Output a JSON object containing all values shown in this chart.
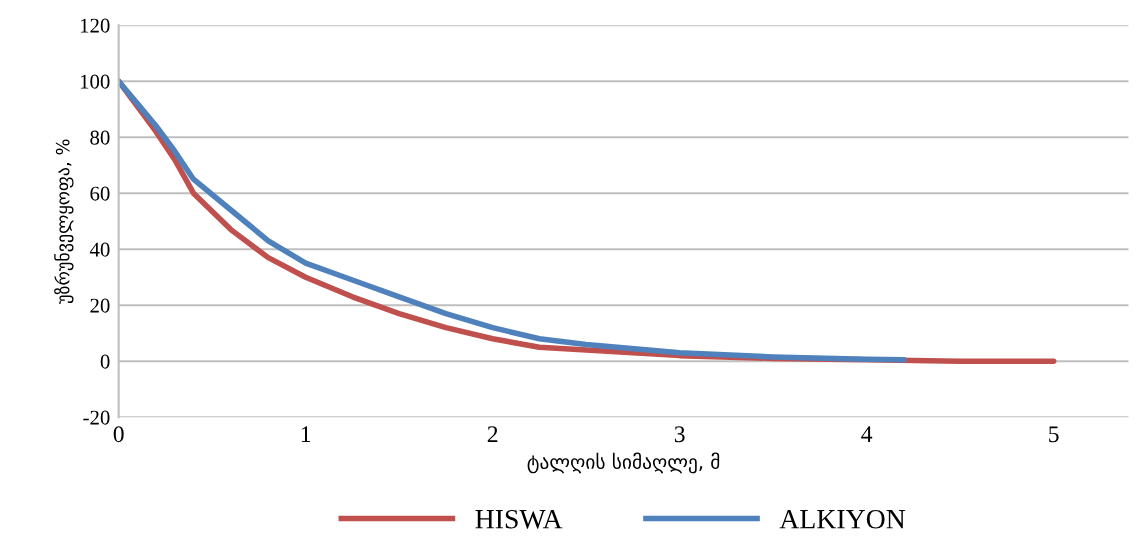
{
  "chart_data": {
    "type": "line",
    "xlabel": "ტალღის სიმაღლე, მ",
    "ylabel": "უზრუნველყოფა, %",
    "xlim": [
      0,
      5.4
    ],
    "xticks": [
      0,
      1,
      2,
      3,
      4,
      5
    ],
    "ylim": [
      -20,
      120
    ],
    "yticks": [
      -20,
      0,
      20,
      40,
      60,
      80,
      100,
      120
    ],
    "grid": "y",
    "legend": "bottom",
    "marker": "none",
    "line_style": "solid",
    "series": [
      {
        "name": "HISWA",
        "color": "#c0504d",
        "x": [
          0,
          0.1,
          0.2,
          0.3,
          0.4,
          0.6,
          0.8,
          1,
          1.25,
          1.5,
          1.75,
          2,
          2.25,
          2.5,
          3,
          3.5,
          4,
          4.5,
          5
        ],
        "values": [
          100,
          91,
          82,
          72,
          60,
          47,
          37,
          30,
          23,
          17,
          12,
          8,
          5,
          4,
          2,
          1,
          0.5,
          0,
          0
        ]
      },
      {
        "name": "ALKIYON",
        "color": "#4f81bd",
        "x": [
          0,
          0.1,
          0.2,
          0.3,
          0.4,
          0.6,
          0.8,
          1,
          1.25,
          1.5,
          1.75,
          2,
          2.25,
          2.5,
          3,
          3.5,
          4,
          4.2
        ],
        "values": [
          100,
          92,
          84,
          75,
          65,
          54,
          43,
          35,
          29,
          23,
          17,
          12,
          8,
          6,
          3,
          1.5,
          0.7,
          0.5
        ]
      }
    ]
  }
}
